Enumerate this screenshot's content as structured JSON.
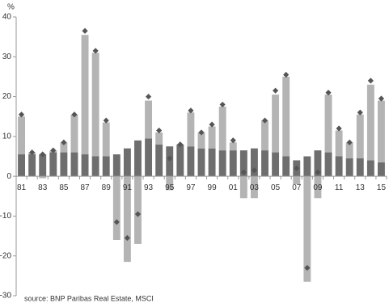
{
  "chart_data": {
    "type": "bar",
    "stacked": true,
    "y_label": "%",
    "source": "source: BNP Paribas Real Estate, MSCI",
    "categories": [
      "81",
      null,
      "83",
      null,
      "85",
      null,
      "87",
      null,
      "89",
      null,
      "91",
      null,
      "93",
      null,
      "95",
      null,
      "97",
      null,
      "99",
      null,
      "01",
      null,
      "03",
      null,
      "05",
      null,
      "07",
      null,
      "09",
      null,
      "11",
      null,
      "13",
      null,
      "15"
    ],
    "series": [
      {
        "color": "#6e6e6e",
        "values": [
          5.5,
          5.5,
          5.5,
          6,
          6,
          6,
          5.5,
          5,
          5,
          5.5,
          7,
          9,
          9.5,
          8,
          7.5,
          8,
          7.5,
          7,
          7,
          6.5,
          6.5,
          6.5,
          7,
          6.5,
          6,
          5,
          4,
          5,
          6.5,
          6,
          5,
          4.5,
          4.5,
          4,
          3.5
        ]
      },
      {
        "color": "#b4b4b4",
        "values": [
          9.5,
          0.5,
          -0.5,
          0.5,
          2.5,
          9.5,
          30,
          26,
          8.5,
          -16,
          -21.5,
          -17,
          9.5,
          3,
          -3.5,
          0,
          8.5,
          4,
          5.5,
          11,
          2,
          -5.5,
          -5.5,
          7.5,
          14.5,
          20,
          -2,
          -26.5,
          -5.5,
          14.5,
          6.5,
          4,
          11,
          19,
          15.5
        ]
      }
    ],
    "total": {
      "color": "#555555",
      "values": [
        15.5,
        6,
        5.5,
        6.5,
        8.5,
        15.5,
        36.5,
        31.5,
        14,
        -11.5,
        -15.5,
        -9.5,
        20,
        11.5,
        4.5,
        8,
        16.5,
        11,
        13,
        18,
        9,
        1,
        1.5,
        14,
        21.5,
        25.5,
        2,
        -23,
        1,
        21,
        12,
        8.5,
        16,
        24,
        19.5
      ]
    },
    "ylim": [
      -30,
      40
    ],
    "yticks": [
      -30,
      -20,
      -10,
      0,
      10,
      20,
      30,
      40
    ]
  }
}
